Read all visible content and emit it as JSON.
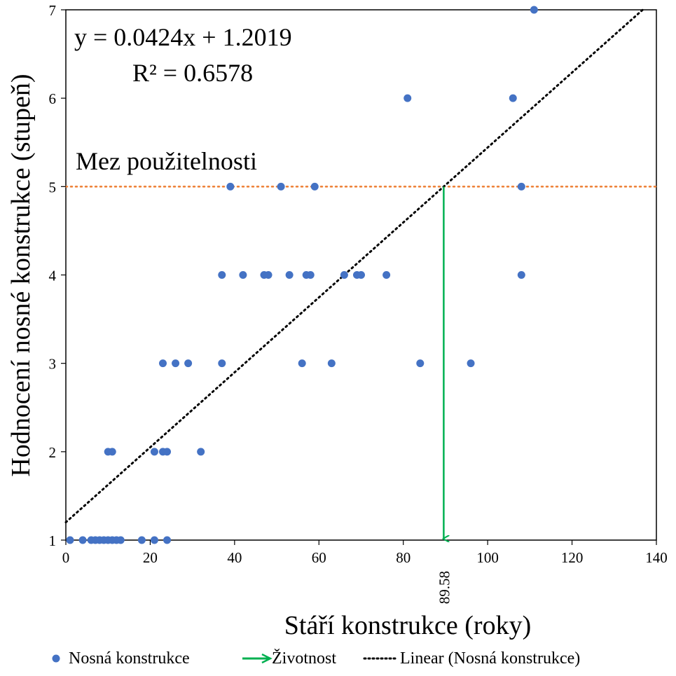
{
  "chart_data": {
    "type": "scatter",
    "xlabel": "Stáří konstrukce (roky)",
    "ylabel": "Hodnocení nosné konstrukce (stupeň)",
    "xlim": [
      0,
      140
    ],
    "ylim": [
      1,
      7
    ],
    "xticks": [
      "0",
      "20",
      "40",
      "60",
      "80",
      "100",
      "120",
      "140"
    ],
    "yticks": [
      "1",
      "2",
      "3",
      "4",
      "5",
      "6",
      "7"
    ],
    "grid": false,
    "legend_position": "bottom",
    "series": [
      {
        "name": "Nosná konstrukce",
        "color": "#4472C4",
        "marker": "circle",
        "x": [
          1,
          4,
          6,
          7,
          8,
          9,
          10,
          11,
          12,
          13,
          18,
          21,
          24,
          10,
          11,
          21,
          23,
          24,
          32,
          23,
          26,
          29,
          37,
          56,
          63,
          84,
          96,
          37,
          42,
          47,
          48,
          53,
          57,
          58,
          66,
          69,
          70,
          76,
          108,
          39,
          51,
          59,
          108,
          81,
          106,
          111
        ],
        "y": [
          1,
          1,
          1,
          1,
          1,
          1,
          1,
          1,
          1,
          1,
          1,
          1,
          1,
          2,
          2,
          2,
          2,
          2,
          2,
          3,
          3,
          3,
          3,
          3,
          3,
          3,
          3,
          4,
          4,
          4,
          4,
          4,
          4,
          4,
          4,
          4,
          4,
          4,
          4,
          5,
          5,
          5,
          5,
          6,
          6,
          7
        ]
      },
      {
        "name": "Linear (Nosná konstrukce)",
        "type": "trendline",
        "color": "#000000",
        "style": "dotted",
        "slope": 0.0424,
        "intercept": 1.2019,
        "x_range": [
          0,
          137
        ]
      }
    ],
    "reference_lines": [
      {
        "label": "Mez použitelnosti",
        "orientation": "horizontal",
        "y": 5,
        "color": "#ED7D31",
        "style": "dotted"
      }
    ],
    "lifetime_marker": {
      "name": "Životnost",
      "color": "#00B050",
      "x": 89.58,
      "y_from": 5,
      "y_to": 1,
      "value_label": "89.58"
    },
    "annotations": {
      "equation": "y = 0.0424x + 1.2019",
      "r_squared": "R² = 0.6578",
      "threshold_label": "Mez použitelnosti"
    },
    "legend": [
      {
        "label": "Nosná konstrukce",
        "symbol": "circle",
        "color": "#4472C4"
      },
      {
        "label": "Životnost",
        "symbol": "arrow",
        "color": "#00B050"
      },
      {
        "label": "Linear (Nosná konstrukce)",
        "symbol": "dotted-line",
        "color": "#000000"
      }
    ]
  }
}
